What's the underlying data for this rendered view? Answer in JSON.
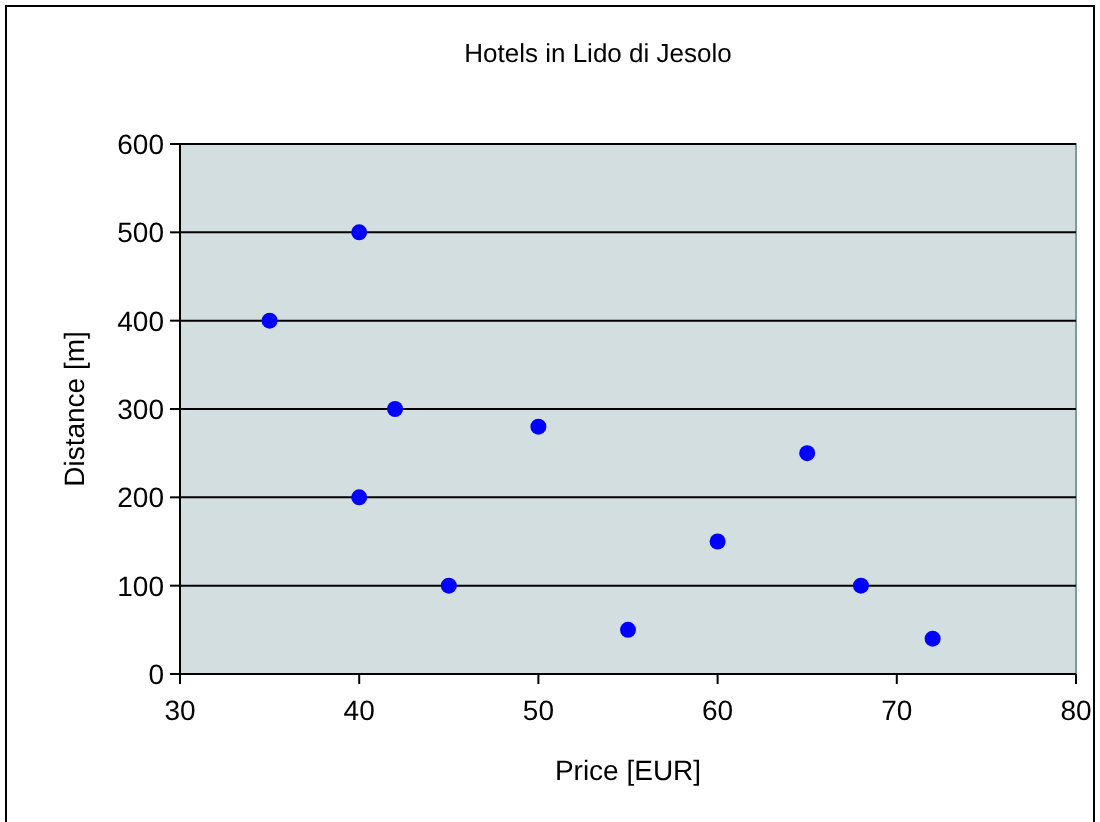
{
  "chart_data": {
    "type": "scatter",
    "title": "Hotels in Lido di Jesolo",
    "xlabel": "Price [EUR]",
    "ylabel": "Distance [m]",
    "x": [
      40,
      35,
      42,
      50,
      40,
      45,
      55,
      60,
      65,
      68,
      72
    ],
    "values": [
      500,
      400,
      300,
      280,
      200,
      100,
      50,
      150,
      250,
      100,
      40
    ],
    "color": "#0000ff",
    "marker": "circle",
    "xlim": [
      30,
      80
    ],
    "xticks": [
      30,
      40,
      50,
      60,
      70,
      80
    ],
    "ylim": [
      0,
      600
    ],
    "yticks": [
      0,
      100,
      200,
      300,
      400,
      500,
      600
    ],
    "grid": "y"
  }
}
